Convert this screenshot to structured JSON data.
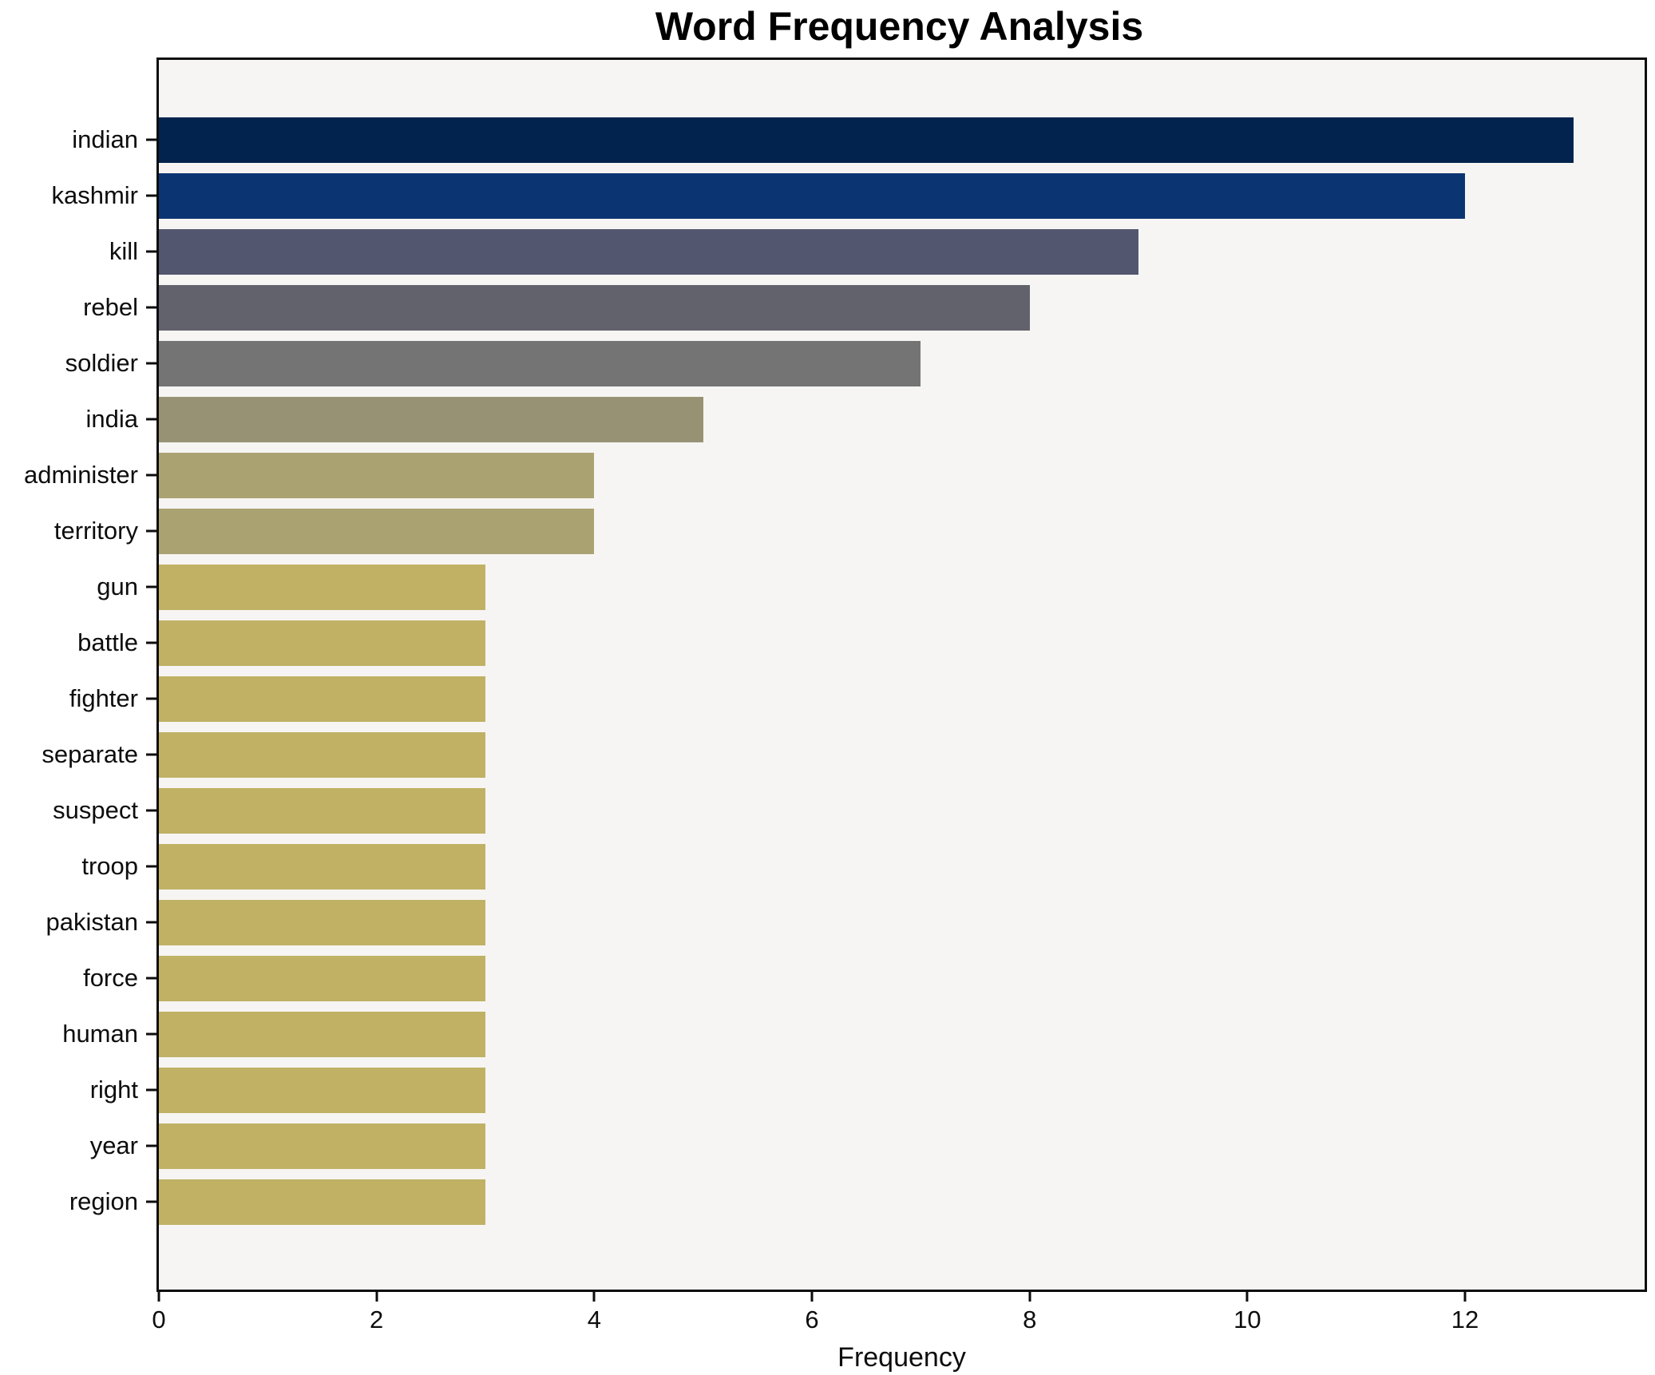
{
  "chart_data": {
    "type": "bar",
    "orientation": "horizontal",
    "title": "Word Frequency Analysis",
    "xlabel": "Frequency",
    "ylabel": "",
    "categories": [
      "indian",
      "kashmir",
      "kill",
      "rebel",
      "soldier",
      "india",
      "administer",
      "territory",
      "gun",
      "battle",
      "fighter",
      "separate",
      "suspect",
      "troop",
      "pakistan",
      "force",
      "human",
      "right",
      "year",
      "region"
    ],
    "values": [
      13,
      12,
      9,
      8,
      7,
      5,
      4,
      4,
      3,
      3,
      3,
      3,
      3,
      3,
      3,
      3,
      3,
      3,
      3,
      3
    ],
    "bar_colors": [
      "#02234e",
      "#0b3472",
      "#52566e",
      "#62626c",
      "#737473",
      "#989275",
      "#aba272",
      "#aba272",
      "#c0b164",
      "#c0b164",
      "#c0b164",
      "#c0b164",
      "#c0b164",
      "#c0b164",
      "#c0b164",
      "#c0b164",
      "#c0b164",
      "#c0b164",
      "#c0b164",
      "#c0b164"
    ],
    "x_ticks": [
      0,
      2,
      4,
      6,
      8,
      10,
      12
    ],
    "xlim": [
      0,
      13.65
    ],
    "grid": false,
    "legend": "none",
    "colors": {
      "figure_background": "#ffffff",
      "plot_background": "#f6f5f3",
      "spine": "#0d0d0d",
      "text": "#0d0d0d"
    }
  }
}
